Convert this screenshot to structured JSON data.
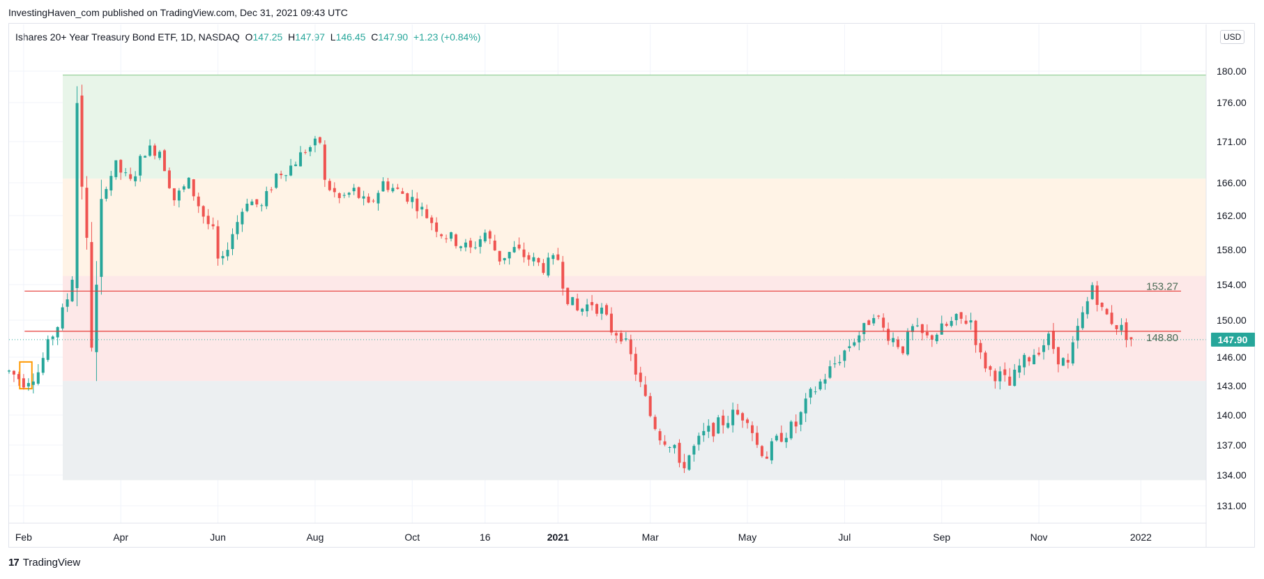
{
  "header": {
    "published": "InvestingHaven_com published on TradingView.com, Dec 31, 2021 09:43 UTC"
  },
  "legend": {
    "symbol": "Ishares 20+ Year Treasury Bond ETF, 1D, NASDAQ",
    "o_label": "O",
    "o": "147.25",
    "h_label": "H",
    "h": "147.97",
    "l_label": "L",
    "l": "146.45",
    "c_label": "C",
    "c": "147.90",
    "change": "+1.23 (+0.84%)"
  },
  "currency": "USD",
  "footer": {
    "brand": "TradingView"
  },
  "colors": {
    "up": "#26a69a",
    "down": "#ef5350",
    "resistance": "#e53935"
  },
  "chart_data": {
    "type": "candlestick",
    "title": "",
    "y_ticks": [
      "180.00",
      "176.00",
      "171.00",
      "166.00",
      "162.00",
      "158.00",
      "154.00",
      "150.00",
      "146.00",
      "143.00",
      "140.00",
      "137.00",
      "134.00",
      "131.00"
    ],
    "x_ticks": [
      {
        "label": "Feb",
        "t": 0.3,
        "bold": false
      },
      {
        "label": "Apr",
        "t": 2.3,
        "bold": false
      },
      {
        "label": "Jun",
        "t": 4.3,
        "bold": false
      },
      {
        "label": "Aug",
        "t": 6.3,
        "bold": false
      },
      {
        "label": "Oct",
        "t": 8.3,
        "bold": false
      },
      {
        "label": "16",
        "t": 9.8,
        "bold": false
      },
      {
        "label": "2021",
        "t": 11.3,
        "bold": true
      },
      {
        "label": "Mar",
        "t": 13.2,
        "bold": false
      },
      {
        "label": "May",
        "t": 15.2,
        "bold": false
      },
      {
        "label": "Jul",
        "t": 17.2,
        "bold": false
      },
      {
        "label": "Sep",
        "t": 19.2,
        "bold": false
      },
      {
        "label": "Nov",
        "t": 21.2,
        "bold": false
      },
      {
        "label": "2022",
        "t": 23.3,
        "bold": false
      }
    ],
    "horizontal_lines": [
      {
        "value": 153.27,
        "label": "153.27"
      },
      {
        "value": 148.8,
        "label": "148.80"
      }
    ],
    "last_price": {
      "value": 147.9,
      "label": "147.90"
    },
    "zones": [
      {
        "from": 166.5,
        "to": 179.5,
        "color": "#e8f5e9"
      },
      {
        "from": 155,
        "to": 166.5,
        "color": "#fff3e6"
      },
      {
        "from": 143.5,
        "to": 155,
        "color": "#fde8e8"
      },
      {
        "from": 133.5,
        "to": 143.5,
        "color": "#eceff1"
      }
    ],
    "path": [
      [
        0.0,
        144.5
      ],
      [
        0.3,
        143.5
      ],
      [
        0.6,
        144.5
      ],
      [
        0.9,
        148.5
      ],
      [
        1.05,
        150
      ],
      [
        1.2,
        152.5
      ],
      [
        1.3,
        155
      ],
      [
        1.38,
        179
      ],
      [
        1.45,
        170
      ],
      [
        1.55,
        163
      ],
      [
        1.65,
        152
      ],
      [
        1.75,
        145
      ],
      [
        1.85,
        160
      ],
      [
        2.0,
        166
      ],
      [
        2.2,
        168
      ],
      [
        2.5,
        166
      ],
      [
        2.8,
        170
      ],
      [
        3.1,
        170
      ],
      [
        3.4,
        164
      ],
      [
        3.7,
        166
      ],
      [
        4.0,
        162
      ],
      [
        4.2,
        160
      ],
      [
        4.35,
        155
      ],
      [
        4.45,
        158
      ],
      [
        4.6,
        160
      ],
      [
        4.9,
        164
      ],
      [
        5.2,
        163
      ],
      [
        5.5,
        167
      ],
      [
        5.8,
        168
      ],
      [
        6.1,
        170
      ],
      [
        6.4,
        171
      ],
      [
        6.5,
        166
      ],
      [
        6.8,
        164
      ],
      [
        7.1,
        165
      ],
      [
        7.4,
        163
      ],
      [
        7.7,
        166
      ],
      [
        8.0,
        165
      ],
      [
        8.3,
        164
      ],
      [
        8.6,
        162
      ],
      [
        8.9,
        160
      ],
      [
        9.2,
        159
      ],
      [
        9.5,
        158
      ],
      [
        9.8,
        160
      ],
      [
        10.1,
        157
      ],
      [
        10.4,
        158
      ],
      [
        10.7,
        157
      ],
      [
        11.0,
        156
      ],
      [
        11.3,
        157
      ],
      [
        11.45,
        153
      ],
      [
        11.7,
        151
      ],
      [
        12.0,
        152
      ],
      [
        12.2,
        151
      ],
      [
        12.4,
        149
      ],
      [
        12.6,
        148.5
      ],
      [
        12.8,
        146
      ],
      [
        13.0,
        143
      ],
      [
        13.2,
        140
      ],
      [
        13.4,
        138
      ],
      [
        13.7,
        137
      ],
      [
        13.8,
        134.5
      ],
      [
        14.0,
        136
      ],
      [
        14.3,
        138
      ],
      [
        14.6,
        139
      ],
      [
        14.9,
        140
      ],
      [
        15.2,
        140
      ],
      [
        15.4,
        137
      ],
      [
        15.6,
        136
      ],
      [
        15.9,
        138
      ],
      [
        16.2,
        139
      ],
      [
        16.5,
        142
      ],
      [
        16.8,
        144
      ],
      [
        17.1,
        146
      ],
      [
        17.4,
        148
      ],
      [
        17.6,
        149
      ],
      [
        17.8,
        151
      ],
      [
        18.0,
        149
      ],
      [
        18.2,
        148
      ],
      [
        18.4,
        147
      ],
      [
        18.6,
        149
      ],
      [
        18.9,
        148
      ],
      [
        19.2,
        149
      ],
      [
        19.5,
        150
      ],
      [
        19.8,
        150
      ],
      [
        20.0,
        146
      ],
      [
        20.2,
        144.5
      ],
      [
        20.4,
        144
      ],
      [
        20.6,
        143
      ],
      [
        20.8,
        145
      ],
      [
        21.0,
        146
      ],
      [
        21.2,
        147
      ],
      [
        21.4,
        148
      ],
      [
        21.6,
        146
      ],
      [
        21.8,
        145
      ],
      [
        22.0,
        149
      ],
      [
        22.2,
        152
      ],
      [
        22.3,
        154
      ],
      [
        22.5,
        151
      ],
      [
        22.7,
        150
      ],
      [
        22.9,
        149
      ],
      [
        23.1,
        148
      ]
    ]
  }
}
